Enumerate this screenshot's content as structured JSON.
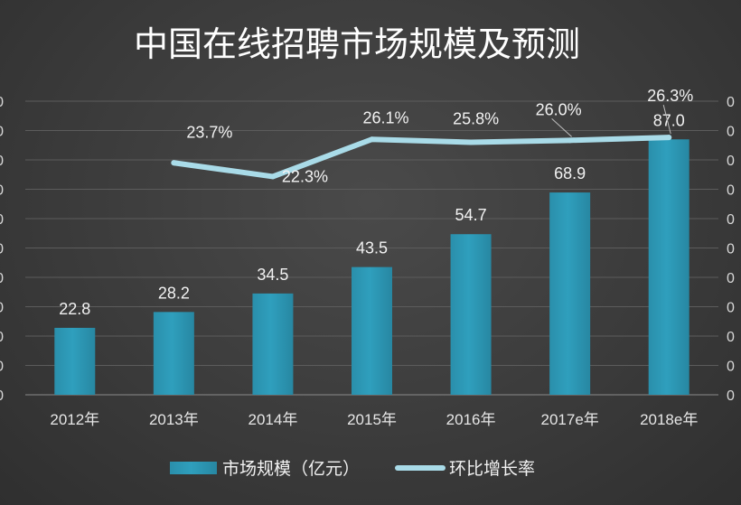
{
  "chart_data": {
    "type": "bar",
    "title": "中国在线招聘市场规模及预测",
    "categories": [
      "2012年",
      "2013年",
      "2014年",
      "2015年",
      "2016年",
      "2017e年",
      "2018e年"
    ],
    "series": [
      {
        "name": "市场规模（亿元）",
        "type": "bar",
        "axis": "left",
        "values": [
          22.8,
          28.2,
          34.5,
          43.5,
          54.7,
          68.9,
          87.0
        ],
        "labels": [
          "22.8",
          "28.2",
          "34.5",
          "43.5",
          "54.7",
          "68.9",
          "87.0"
        ],
        "color": "#2f9fbd"
      },
      {
        "name": "环比增长率",
        "type": "line",
        "axis": "right",
        "values": [
          null,
          23.7,
          22.3,
          26.1,
          25.8,
          26.0,
          26.3
        ],
        "labels": [
          "",
          "23.7%",
          "22.3%",
          "26.1%",
          "25.8%",
          "26.0%",
          "26.3%"
        ],
        "color": "#a9dbe8"
      }
    ],
    "left_axis_ticks": [
      "0",
      "0",
      "0",
      "0",
      "0",
      "0",
      "0",
      "0",
      "0",
      "0",
      "0"
    ],
    "right_axis_ticks": [
      "0",
      "0",
      "0",
      "0",
      "0",
      "0",
      "0",
      "0",
      "0",
      "0",
      "0"
    ],
    "ylim_left": [
      0,
      100
    ],
    "ylim_right": [
      0,
      30
    ],
    "grid": true,
    "legend_position": "bottom"
  }
}
